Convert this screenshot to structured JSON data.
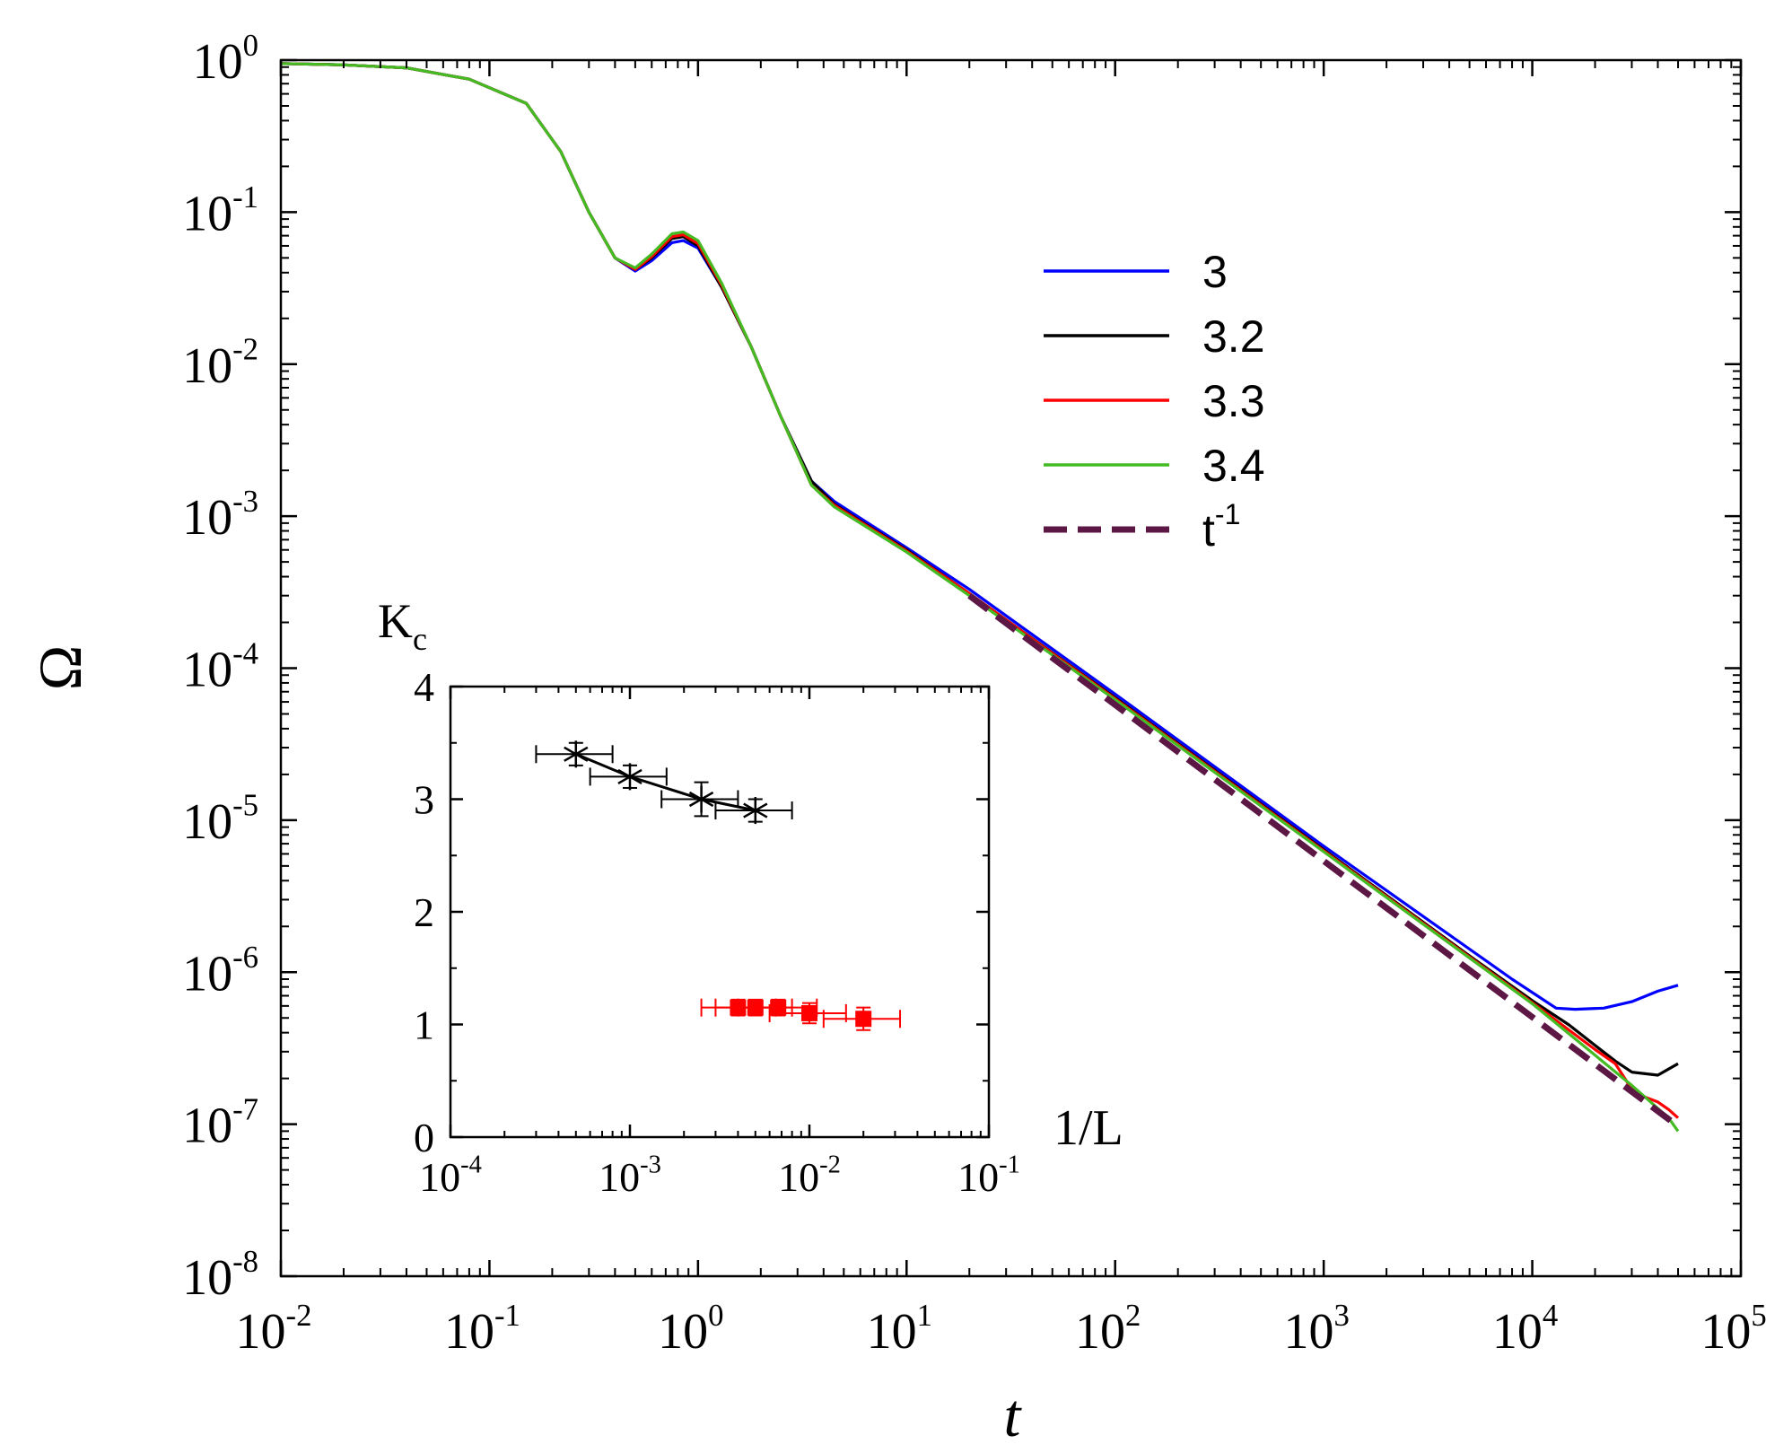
{
  "chart_data": [
    {
      "id": "main",
      "type": "line",
      "xscale": "log",
      "yscale": "log",
      "xlim": [
        0.01,
        100000
      ],
      "ylim": [
        1e-08,
        1
      ],
      "xlabel": "t",
      "ylabel": "Ω",
      "x_tick_exponents": [
        "-2",
        "-1",
        "0",
        "1",
        "2",
        "3",
        "4",
        "5"
      ],
      "y_tick_exponents": [
        "0",
        "-1",
        "-2",
        "-3",
        "-4",
        "-5",
        "-6",
        "-7",
        "-8"
      ],
      "tick_base": "10",
      "legend_position": "upper-right",
      "series": [
        {
          "name": "3",
          "color": "#0000ff",
          "dash": false,
          "points": [
            [
              0.01,
              0.95
            ],
            [
              0.02,
              0.93
            ],
            [
              0.04,
              0.89
            ],
            [
              0.08,
              0.75
            ],
            [
              0.15,
              0.52
            ],
            [
              0.22,
              0.25
            ],
            [
              0.3,
              0.1
            ],
            [
              0.4,
              0.05
            ],
            [
              0.5,
              0.041
            ],
            [
              0.6,
              0.048
            ],
            [
              0.75,
              0.063
            ],
            [
              0.85,
              0.065
            ],
            [
              1.0,
              0.058
            ],
            [
              1.3,
              0.032
            ],
            [
              1.8,
              0.013
            ],
            [
              2.5,
              0.0045
            ],
            [
              3.5,
              0.0017
            ],
            [
              4.5,
              0.00125
            ],
            [
              6,
              0.00097
            ],
            [
              10,
              0.00062
            ],
            [
              20,
              0.00033
            ],
            [
              100,
              6.75e-05
            ],
            [
              1000,
              6.75e-06
            ],
            [
              5000,
              1.42e-06
            ],
            [
              8000,
              9e-07
            ],
            [
              13000,
              5.8e-07
            ],
            [
              16000,
              5.7e-07
            ],
            [
              22000,
              5.8e-07
            ],
            [
              30000,
              6.4e-07
            ],
            [
              40000,
              7.5e-07
            ],
            [
              50000,
              8.2e-07
            ]
          ]
        },
        {
          "name": "3.2",
          "color": "#000000",
          "dash": false,
          "points": [
            [
              0.01,
              0.95
            ],
            [
              0.02,
              0.93
            ],
            [
              0.04,
              0.89
            ],
            [
              0.08,
              0.75
            ],
            [
              0.15,
              0.52
            ],
            [
              0.22,
              0.25
            ],
            [
              0.3,
              0.1
            ],
            [
              0.4,
              0.05
            ],
            [
              0.5,
              0.042
            ],
            [
              0.6,
              0.05
            ],
            [
              0.75,
              0.067
            ],
            [
              0.85,
              0.069
            ],
            [
              1.0,
              0.06
            ],
            [
              1.3,
              0.032
            ],
            [
              1.8,
              0.013
            ],
            [
              2.5,
              0.0045
            ],
            [
              3.5,
              0.0017
            ],
            [
              4.5,
              0.0012
            ],
            [
              6,
              0.00093
            ],
            [
              10,
              0.0006
            ],
            [
              20,
              0.00031
            ],
            [
              100,
              6.4e-05
            ],
            [
              1000,
              6.4e-06
            ],
            [
              5000,
              1.28e-06
            ],
            [
              10000,
              6.5e-07
            ],
            [
              15000,
              4.5e-07
            ],
            [
              20000,
              3.3e-07
            ],
            [
              25000,
              2.6e-07
            ],
            [
              30000,
              2.2e-07
            ],
            [
              40000,
              2.1e-07
            ],
            [
              50000,
              2.5e-07
            ]
          ]
        },
        {
          "name": "3.3",
          "color": "#ff0000",
          "dash": false,
          "points": [
            [
              0.01,
              0.95
            ],
            [
              0.02,
              0.93
            ],
            [
              0.04,
              0.89
            ],
            [
              0.08,
              0.75
            ],
            [
              0.15,
              0.52
            ],
            [
              0.22,
              0.25
            ],
            [
              0.3,
              0.1
            ],
            [
              0.4,
              0.05
            ],
            [
              0.5,
              0.042
            ],
            [
              0.6,
              0.051
            ],
            [
              0.75,
              0.069
            ],
            [
              0.85,
              0.071
            ],
            [
              1.0,
              0.062
            ],
            [
              1.3,
              0.033
            ],
            [
              1.8,
              0.013
            ],
            [
              2.5,
              0.0045
            ],
            [
              3.5,
              0.0016
            ],
            [
              4.5,
              0.00118
            ],
            [
              6,
              0.00092
            ],
            [
              10,
              0.00059
            ],
            [
              20,
              0.00031
            ],
            [
              100,
              6.3e-05
            ],
            [
              1000,
              6.3e-06
            ],
            [
              10000,
              6.3e-07
            ],
            [
              20000,
              3.1e-07
            ],
            [
              25000,
              2.5e-07
            ],
            [
              30000,
              1.7e-07
            ],
            [
              35000,
              1.5e-07
            ],
            [
              40000,
              1.4e-07
            ],
            [
              45000,
              1.25e-07
            ],
            [
              50000,
              1.1e-07
            ]
          ]
        },
        {
          "name": "3.4",
          "color": "#44bb22",
          "dash": false,
          "points": [
            [
              0.01,
              0.95
            ],
            [
              0.02,
              0.93
            ],
            [
              0.04,
              0.89
            ],
            [
              0.08,
              0.75
            ],
            [
              0.15,
              0.52
            ],
            [
              0.22,
              0.25
            ],
            [
              0.3,
              0.1
            ],
            [
              0.4,
              0.05
            ],
            [
              0.5,
              0.043
            ],
            [
              0.6,
              0.053
            ],
            [
              0.75,
              0.072
            ],
            [
              0.85,
              0.074
            ],
            [
              1.0,
              0.065
            ],
            [
              1.3,
              0.034
            ],
            [
              1.8,
              0.013
            ],
            [
              2.5,
              0.0045
            ],
            [
              3.5,
              0.0016
            ],
            [
              4.5,
              0.00115
            ],
            [
              6,
              0.0009
            ],
            [
              10,
              0.00058
            ],
            [
              20,
              0.0003
            ],
            [
              100,
              6.2e-05
            ],
            [
              1000,
              6.2e-06
            ],
            [
              10000,
              6.2e-07
            ],
            [
              30000,
              1.8e-07
            ],
            [
              45000,
              1.1e-07
            ],
            [
              50000,
              9e-08
            ]
          ]
        },
        {
          "name": "t",
          "name_superscript": "-1",
          "color": "#5c1745",
          "dash": true,
          "points": [
            [
              20,
              0.0003
            ],
            [
              50000,
              9.7e-08
            ]
          ]
        }
      ]
    },
    {
      "id": "inset",
      "type": "scatter",
      "xscale": "log",
      "xlim": [
        0.0001,
        0.1
      ],
      "ylim": [
        0,
        4
      ],
      "xlabel": "1/L",
      "ylabel": "K",
      "ylabel_subscript": "c",
      "x_tick_exponents": [
        "-4",
        "-3",
        "-2",
        "-1"
      ],
      "y_ticks": [
        "0",
        "1",
        "2",
        "3",
        "4"
      ],
      "tick_base": "10",
      "series": [
        {
          "name": "black-stars",
          "color": "#000000",
          "marker": "star",
          "fit_line": true,
          "points": [
            {
              "x": 0.0005,
              "y": 3.4,
              "xerr": [
                0.0003,
                0.0008
              ],
              "yerr": 0.1
            },
            {
              "x": 0.001,
              "y": 3.2,
              "xerr": [
                0.0006,
                0.0016
              ],
              "yerr": 0.1
            },
            {
              "x": 0.0025,
              "y": 3.0,
              "xerr": [
                0.0015,
                0.004
              ],
              "yerr": 0.15
            },
            {
              "x": 0.005,
              "y": 2.9,
              "xerr": [
                0.003,
                0.008
              ],
              "yerr": 0.1
            }
          ]
        },
        {
          "name": "red-squares",
          "color": "#ff0000",
          "marker": "square",
          "fit_line": false,
          "points": [
            {
              "x": 0.004,
              "y": 1.15,
              "xerr": [
                0.0025,
                0.0065
              ],
              "yerr": 0.07
            },
            {
              "x": 0.005,
              "y": 1.15,
              "xerr": [
                0.003,
                0.008
              ],
              "yerr": 0.07
            },
            {
              "x": 0.0067,
              "y": 1.15,
              "xerr": [
                0.004,
                0.011
              ],
              "yerr": 0.07
            },
            {
              "x": 0.01,
              "y": 1.1,
              "xerr": [
                0.006,
                0.016
              ],
              "yerr": 0.09
            },
            {
              "x": 0.02,
              "y": 1.05,
              "xerr": [
                0.012,
                0.032
              ],
              "yerr": 0.1
            }
          ]
        }
      ]
    }
  ]
}
